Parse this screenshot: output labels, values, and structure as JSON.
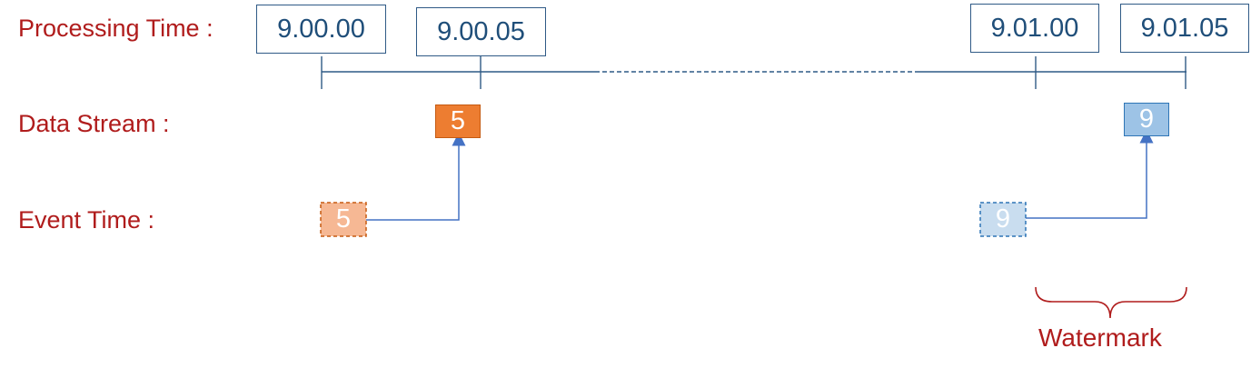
{
  "labels": {
    "processing_time": "Processing Time :",
    "data_stream": "Data Stream :",
    "event_time": "Event Time :"
  },
  "processing_times": [
    "9.00.00",
    "9.00.05",
    "9.01.00",
    "9.01.05"
  ],
  "events": [
    {
      "value": "5",
      "color": "#ed7d31",
      "event_color": "#f6b894"
    },
    {
      "value": "9",
      "color": "#9dc3e6",
      "event_color": "#c9ddef"
    }
  ],
  "watermark": {
    "label": "Watermark",
    "color": "#b01c1c"
  },
  "colors": {
    "timeline": "#2f5a86",
    "arrow": "#4472c4",
    "label_red": "#b01c1c"
  }
}
